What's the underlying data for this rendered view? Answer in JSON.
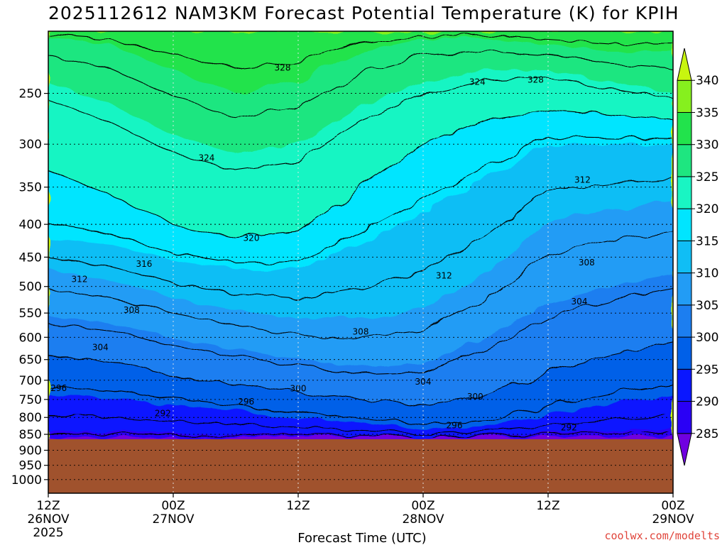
{
  "title": "2025112612 NAM3KM Forecast Potential Temperature (K) for KPIH",
  "credit": "coolwx.com/modelts",
  "chart_data": {
    "type": "heatmap",
    "subtype": "time-height cross section (filled contours)",
    "title": "2025112612 NAM3KM Forecast Potential Temperature (K) for KPIH",
    "xlabel": "Forecast Time (UTC)",
    "ylabel": "",
    "x_range_hours": [
      0,
      60
    ],
    "y_range_hPa": [
      200,
      1050
    ],
    "y_scale": "log-pressure (inverted)",
    "grid": true,
    "x_ticks": [
      {
        "hour": 0,
        "lines": [
          "12Z",
          "26NOV",
          "2025"
        ]
      },
      {
        "hour": 12,
        "lines": [
          "00Z",
          "27NOV"
        ]
      },
      {
        "hour": 24,
        "lines": [
          "12Z"
        ]
      },
      {
        "hour": 36,
        "lines": [
          "00Z",
          "28NOV"
        ]
      },
      {
        "hour": 48,
        "lines": [
          "12Z"
        ]
      },
      {
        "hour": 60,
        "lines": [
          "00Z",
          "29NOV"
        ]
      }
    ],
    "y_ticks": [
      250,
      300,
      350,
      400,
      450,
      500,
      550,
      600,
      650,
      700,
      750,
      800,
      850,
      900,
      950,
      1000
    ],
    "surface_pressure_hPa": 865,
    "colorbar": {
      "levels": [
        285,
        290,
        295,
        300,
        305,
        310,
        315,
        320,
        325,
        330,
        335,
        340
      ],
      "colors": [
        "#7000e0",
        "#2a00f5",
        "#0a17ff",
        "#0060e8",
        "#1c7ef0",
        "#229cf5",
        "#10bef5",
        "#00e5ff",
        "#19f5c3",
        "#1ee680",
        "#22e34c",
        "#86f01e",
        "#c8f50f"
      ],
      "extend": "both"
    },
    "contour_interval": 4,
    "contour_labels": [
      {
        "value": "328",
        "hour": 22.5,
        "p": 228
      },
      {
        "value": "324",
        "hour": 41.2,
        "p": 240
      },
      {
        "value": "328",
        "hour": 46.8,
        "p": 238
      },
      {
        "value": "324",
        "hour": 15.2,
        "p": 315
      },
      {
        "value": "312",
        "hour": 51.3,
        "p": 341
      },
      {
        "value": "320",
        "hour": 19.5,
        "p": 420
      },
      {
        "value": "316",
        "hour": 9.2,
        "p": 461
      },
      {
        "value": "312",
        "hour": 38.0,
        "p": 481
      },
      {
        "value": "308",
        "hour": 51.7,
        "p": 459
      },
      {
        "value": "312",
        "hour": 3.0,
        "p": 487
      },
      {
        "value": "304",
        "hour": 51.0,
        "p": 528
      },
      {
        "value": "308",
        "hour": 8.0,
        "p": 544
      },
      {
        "value": "308",
        "hour": 30.0,
        "p": 588
      },
      {
        "value": "304",
        "hour": 5.0,
        "p": 622
      },
      {
        "value": "304",
        "hour": 36.0,
        "p": 704
      },
      {
        "value": "296",
        "hour": 1.0,
        "p": 720
      },
      {
        "value": "300",
        "hour": 24.0,
        "p": 721
      },
      {
        "value": "300",
        "hour": 41.0,
        "p": 743
      },
      {
        "value": "296",
        "hour": 19.0,
        "p": 756
      },
      {
        "value": "292",
        "hour": 11.0,
        "p": 788
      },
      {
        "value": "296",
        "hour": 39.0,
        "p": 823
      },
      {
        "value": "292",
        "hour": 50.0,
        "p": 830
      }
    ]
  }
}
